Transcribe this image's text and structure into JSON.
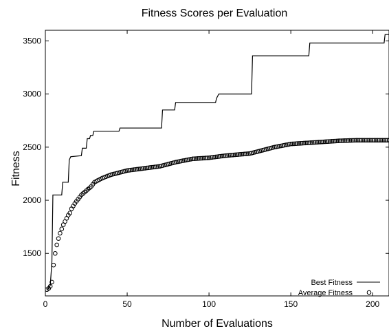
{
  "chart_data": {
    "type": "line",
    "title": "Fitness Scores per Evaluation",
    "xlabel": "Number of Evaluations",
    "ylabel": "Fitness",
    "xlim": [
      0,
      210
    ],
    "ylim": [
      1100,
      3600
    ],
    "x_ticks": [
      0,
      50,
      100,
      150,
      200
    ],
    "y_ticks": [
      1500,
      2000,
      2500,
      3000,
      3500
    ],
    "grid": false,
    "legend_position": "bottom-right",
    "series": [
      {
        "name": "Best Fitness",
        "style": "step-line",
        "color": "#000000",
        "points": [
          [
            1,
            1160
          ],
          [
            2,
            1170
          ],
          [
            3,
            1200
          ],
          [
            4,
            1420
          ],
          [
            4.6,
            2050
          ],
          [
            10,
            2050
          ],
          [
            10.6,
            2170
          ],
          [
            14,
            2170
          ],
          [
            14.6,
            2380
          ],
          [
            15.5,
            2410
          ],
          [
            22,
            2420
          ],
          [
            22.6,
            2490
          ],
          [
            25,
            2490
          ],
          [
            25.6,
            2580
          ],
          [
            27,
            2580
          ],
          [
            27.6,
            2610
          ],
          [
            29,
            2610
          ],
          [
            29.6,
            2650
          ],
          [
            45,
            2650
          ],
          [
            45.6,
            2680
          ],
          [
            71,
            2680
          ],
          [
            71.6,
            2850
          ],
          [
            79,
            2850
          ],
          [
            79.6,
            2920
          ],
          [
            104,
            2920
          ],
          [
            104.6,
            2960
          ],
          [
            106,
            3000
          ],
          [
            126,
            3000
          ],
          [
            126.6,
            3360
          ],
          [
            161,
            3360
          ],
          [
            161.6,
            3480
          ],
          [
            207,
            3480
          ],
          [
            207.6,
            3560
          ],
          [
            210,
            3560
          ]
        ]
      },
      {
        "name": "Average Fitness",
        "style": "markers",
        "marker": "circle",
        "color": "#000000",
        "anchors": [
          [
            1,
            1160
          ],
          [
            2,
            1170
          ],
          [
            3,
            1190
          ],
          [
            4,
            1230
          ],
          [
            5,
            1390
          ],
          [
            6,
            1500
          ],
          [
            7,
            1580
          ],
          [
            8,
            1640
          ],
          [
            9,
            1690
          ],
          [
            10,
            1730
          ],
          [
            11,
            1770
          ],
          [
            12,
            1800
          ],
          [
            13,
            1830
          ],
          [
            14,
            1860
          ],
          [
            15,
            1880
          ],
          [
            16,
            1920
          ],
          [
            18,
            1970
          ],
          [
            20,
            2010
          ],
          [
            22,
            2050
          ],
          [
            25,
            2090
          ],
          [
            28,
            2130
          ],
          [
            30,
            2170
          ],
          [
            35,
            2210
          ],
          [
            40,
            2240
          ],
          [
            50,
            2280
          ],
          [
            60,
            2300
          ],
          [
            70,
            2320
          ],
          [
            80,
            2360
          ],
          [
            90,
            2390
          ],
          [
            100,
            2400
          ],
          [
            110,
            2420
          ],
          [
            125,
            2440
          ],
          [
            130,
            2460
          ],
          [
            140,
            2500
          ],
          [
            150,
            2530
          ],
          [
            160,
            2540
          ],
          [
            170,
            2550
          ],
          [
            180,
            2560
          ],
          [
            190,
            2565
          ],
          [
            200,
            2565
          ],
          [
            210,
            2565
          ]
        ]
      }
    ]
  }
}
